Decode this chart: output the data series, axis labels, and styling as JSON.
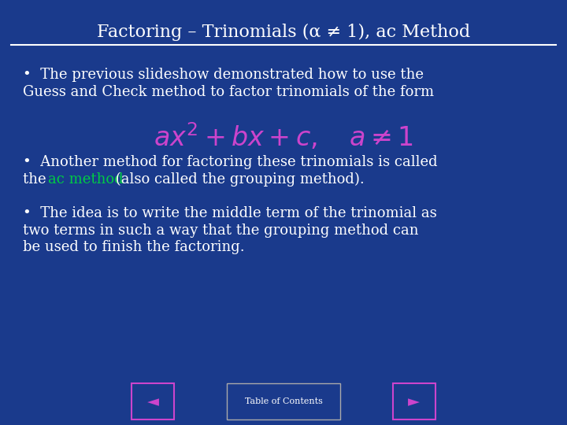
{
  "title": "Factoring – Trinomials (α ≠ 1), ac Method",
  "bg_color": "#1a3a8c",
  "title_color": "#ffffff",
  "title_fontsize": 16,
  "line_color": "#ffffff",
  "bullet1_line1": "•  The previous slideshow demonstrated how to use the",
  "bullet1_line2": "Guess and Check method to factor trinomials of the form",
  "bullet2_line1": "•  Another method for factoring these trinomials is called",
  "bullet2_line2_before": "the ",
  "bullet2_ac": "ac method",
  "bullet2_line2_after": " (also called the grouping method).",
  "bullet3_line1": "•  The idea is to write the middle term of the trinomial as",
  "bullet3_line2": "two terms in such a way that the grouping method can",
  "bullet3_line3": "be used to finish the factoring.",
  "text_color": "#ffffff",
  "ac_color": "#00cc44",
  "formula_color": "#cc44cc",
  "button_bg": "#1a3a8c",
  "button_border": "#cc44cc",
  "toc_label": "Table of Contents",
  "toc_bg": "#1a3a8c",
  "toc_border": "#aaaaaa"
}
